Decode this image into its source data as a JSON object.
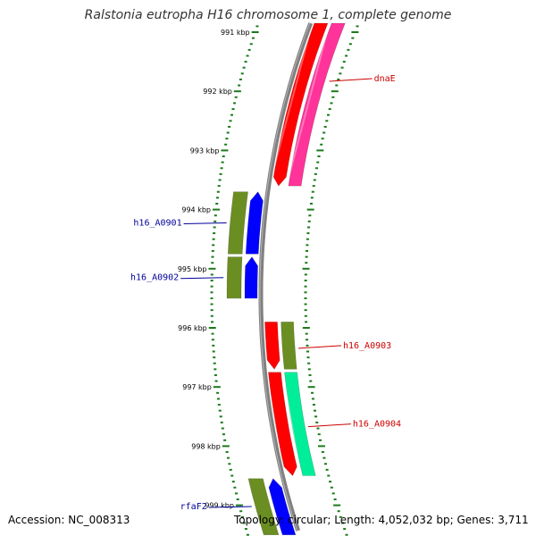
{
  "title": "Ralstonia eutropha H16 chromosome 1, complete genome",
  "accession_text": "Accession: NC_008313",
  "summary_text": "Topology: circular; Length: 4,052,032 bp; Genes: 3,711",
  "colors": {
    "backbone": "#808080",
    "tick": "#1a7a1a",
    "forward_label": "#cc0000",
    "reverse_label": "#000099"
  },
  "kbp_ticks": [
    "991 kbp",
    "992 kbp",
    "993 kbp",
    "994 kbp",
    "995 kbp",
    "996 kbp",
    "997 kbp",
    "998 kbp",
    "999 kbp"
  ],
  "genes": [
    {
      "label": "dnaE",
      "strand": "forward",
      "from_kbp": 990.6,
      "to_kbp": 993.6,
      "colors": [
        "#ff0000",
        "#ff3399"
      ]
    },
    {
      "label": "h16_A0901",
      "strand": "reverse",
      "from_kbp": 993.7,
      "to_kbp": 994.75,
      "colors": [
        "#6b8e23",
        "#0000ff"
      ]
    },
    {
      "label": "h16_A0902",
      "strand": "reverse",
      "from_kbp": 994.8,
      "to_kbp": 995.5,
      "colors": [
        "#6b8e23",
        "#0000ff"
      ]
    },
    {
      "label": "h16_A0903",
      "strand": "forward",
      "from_kbp": 995.9,
      "to_kbp": 996.7,
      "colors": [
        "#ff0000",
        "#6b8e23"
      ]
    },
    {
      "label": "h16_A0904",
      "strand": "forward",
      "from_kbp": 996.75,
      "to_kbp": 998.5,
      "colors": [
        "#ff0000",
        "#00ee99"
      ]
    },
    {
      "label": "rfaF2",
      "strand": "reverse",
      "from_kbp": 998.55,
      "to_kbp": 999.5,
      "colors": [
        "#6b8e23",
        "#0000ff"
      ]
    }
  ]
}
